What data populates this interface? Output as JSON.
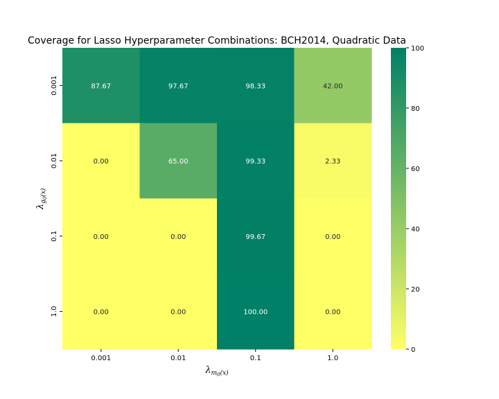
{
  "chart_data": {
    "type": "heatmap",
    "title": "Coverage for Lasso Hyperparameter Combinations: BCH2014, Quadratic Data",
    "xlabel": "λ_{m0(x)}",
    "ylabel": "λ_{g0(x)}",
    "x_categories": [
      "0.001",
      "0.01",
      "0.1",
      "1.0"
    ],
    "y_categories": [
      "0.001",
      "0.01",
      "0.1",
      "1.0"
    ],
    "values": [
      [
        87.67,
        97.67,
        98.33,
        42.0
      ],
      [
        0.0,
        65.0,
        99.33,
        2.33
      ],
      [
        0.0,
        0.0,
        99.67,
        0.0
      ],
      [
        0.0,
        0.0,
        100.0,
        0.0
      ]
    ],
    "value_labels": [
      [
        "87.67",
        "97.67",
        "98.33",
        "42.00"
      ],
      [
        "0.00",
        "65.00",
        "99.33",
        "2.33"
      ],
      [
        "0.00",
        "0.00",
        "99.67",
        "0.00"
      ],
      [
        "0.00",
        "0.00",
        "100.00",
        "0.00"
      ]
    ],
    "colorbar": {
      "range": [
        0,
        100
      ],
      "ticks": [
        "0",
        "20",
        "40",
        "60",
        "80",
        "100"
      ],
      "colormap": "summer_r",
      "low_color": "#ffff66",
      "high_color": "#008066"
    }
  }
}
